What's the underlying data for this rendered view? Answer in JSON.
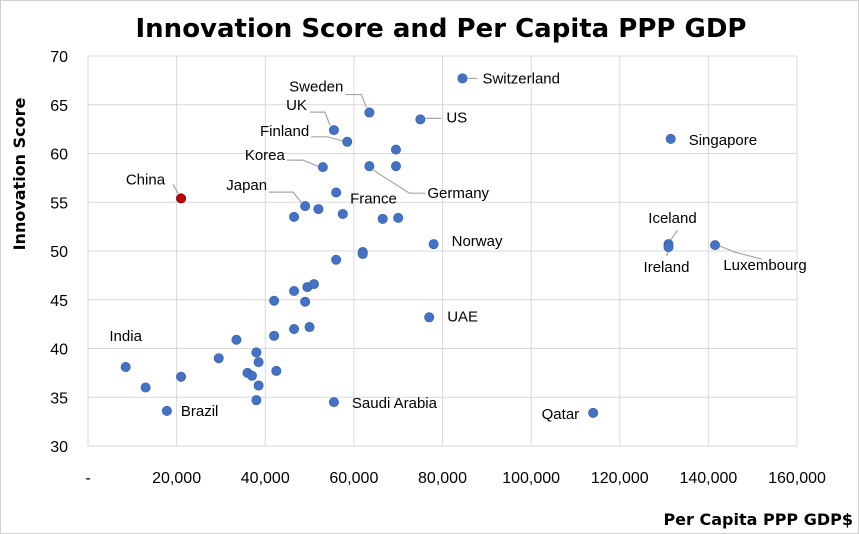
{
  "chart_data": {
    "type": "scatter",
    "title": "Innovation Score and Per Capita PPP GDP",
    "xlabel": "Per Capita PPP GDP$",
    "ylabel": "Innovation Score",
    "xlim": [
      0,
      160000
    ],
    "ylim": [
      30,
      70
    ],
    "x_ticks": [
      0,
      20000,
      40000,
      60000,
      80000,
      100000,
      120000,
      140000,
      160000
    ],
    "x_tick_labels": [
      "-",
      "20,000",
      "40,000",
      "60,000",
      "80,000",
      "100,000",
      "120,000",
      "140,000",
      "160,000"
    ],
    "y_ticks": [
      30,
      35,
      40,
      45,
      50,
      55,
      60,
      65,
      70
    ],
    "grid": true,
    "legend": "none",
    "colors": {
      "point": "#4472c4",
      "highlight": "#c00000",
      "highlight_stroke": "#7f0000",
      "leader": "#a6a6a6",
      "grid": "#d9d9d9"
    },
    "points": [
      {
        "x": 21000,
        "y": 55.4,
        "label": "China",
        "highlight": true
      },
      {
        "x": 8500,
        "y": 38.1,
        "label": "India"
      },
      {
        "x": 17800,
        "y": 33.6,
        "label": "Brazil"
      },
      {
        "x": 84500,
        "y": 67.7,
        "label": "Switzerland"
      },
      {
        "x": 63500,
        "y": 64.2,
        "label": "Sweden"
      },
      {
        "x": 75000,
        "y": 63.5,
        "label": "US"
      },
      {
        "x": 55500,
        "y": 62.4,
        "label": "UK"
      },
      {
        "x": 58500,
        "y": 61.2,
        "label": "Finland"
      },
      {
        "x": 53000,
        "y": 58.6,
        "label": "Korea"
      },
      {
        "x": 49000,
        "y": 54.6,
        "label": "Japan"
      },
      {
        "x": 63500,
        "y": 58.7,
        "label": "Germany"
      },
      {
        "x": 56000,
        "y": 56.0,
        "label": "France"
      },
      {
        "x": 78000,
        "y": 50.7,
        "label": "Norway"
      },
      {
        "x": 77000,
        "y": 43.2,
        "label": "UAE"
      },
      {
        "x": 55500,
        "y": 34.5,
        "label": "Saudi Arabia"
      },
      {
        "x": 114000,
        "y": 33.4,
        "label": "Qatar"
      },
      {
        "x": 131500,
        "y": 61.5,
        "label": "Singapore"
      },
      {
        "x": 131000,
        "y": 50.7,
        "label": "Iceland"
      },
      {
        "x": 131000,
        "y": 50.4,
        "label": "Ireland"
      },
      {
        "x": 141500,
        "y": 50.6,
        "label": "Luxembourg"
      },
      {
        "x": 69500,
        "y": 60.4
      },
      {
        "x": 69500,
        "y": 58.7
      },
      {
        "x": 46500,
        "y": 53.5
      },
      {
        "x": 52000,
        "y": 54.3
      },
      {
        "x": 57500,
        "y": 53.8
      },
      {
        "x": 66500,
        "y": 53.3
      },
      {
        "x": 70000,
        "y": 53.4
      },
      {
        "x": 62000,
        "y": 49.9
      },
      {
        "x": 62000,
        "y": 49.7
      },
      {
        "x": 56000,
        "y": 49.1
      },
      {
        "x": 42000,
        "y": 44.9
      },
      {
        "x": 46500,
        "y": 45.9
      },
      {
        "x": 49500,
        "y": 46.3
      },
      {
        "x": 51000,
        "y": 46.6
      },
      {
        "x": 49000,
        "y": 44.8
      },
      {
        "x": 46500,
        "y": 42.0
      },
      {
        "x": 50000,
        "y": 42.2
      },
      {
        "x": 42000,
        "y": 41.3
      },
      {
        "x": 33500,
        "y": 40.9
      },
      {
        "x": 29500,
        "y": 39.0
      },
      {
        "x": 38000,
        "y": 39.6
      },
      {
        "x": 38500,
        "y": 38.6
      },
      {
        "x": 36000,
        "y": 37.5
      },
      {
        "x": 37000,
        "y": 37.2
      },
      {
        "x": 42500,
        "y": 37.7
      },
      {
        "x": 38500,
        "y": 36.2
      },
      {
        "x": 21000,
        "y": 37.1
      },
      {
        "x": 13000,
        "y": 36.0
      },
      {
        "x": 38000,
        "y": 34.7
      }
    ]
  }
}
